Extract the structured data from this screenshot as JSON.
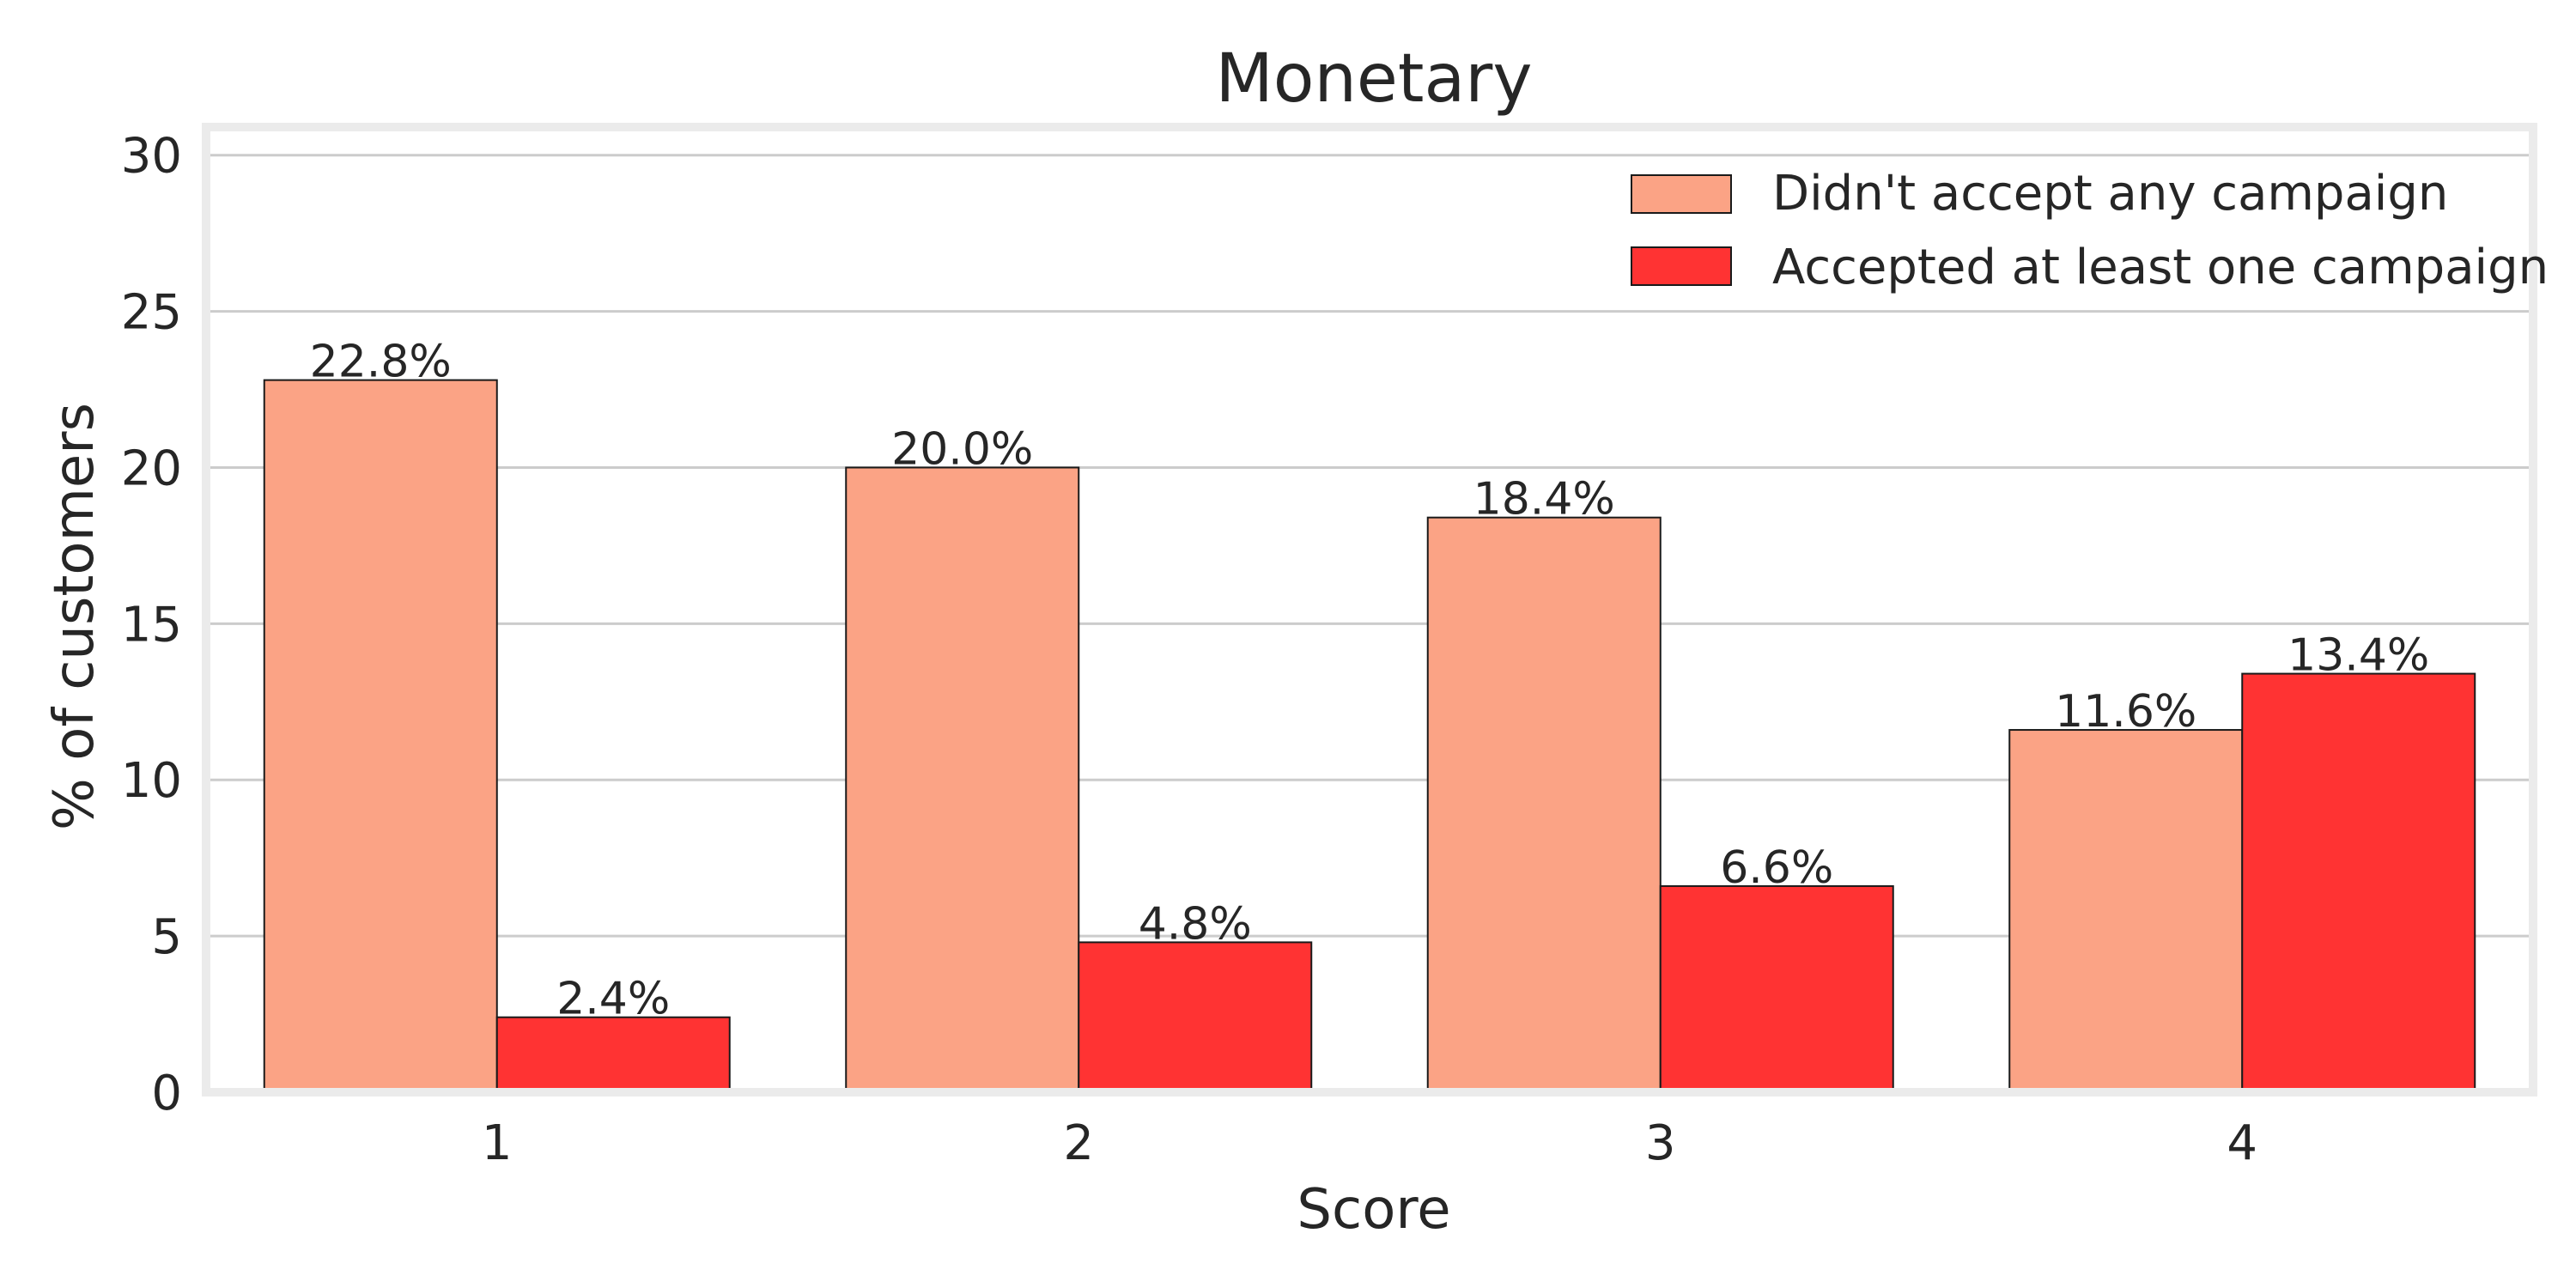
{
  "chart_data": {
    "type": "bar",
    "title": "Monetary",
    "xlabel": "Score",
    "ylabel": "% of customers",
    "categories": [
      "1",
      "2",
      "3",
      "4"
    ],
    "series": [
      {
        "name": "Didn't accept any campaign",
        "values": [
          22.8,
          20.0,
          18.4,
          11.6
        ],
        "labels": [
          "22.8%",
          "20.0%",
          "18.4%",
          "11.6%"
        ],
        "color": "#fba385"
      },
      {
        "name": "Accepted at least one campaign",
        "values": [
          2.4,
          4.8,
          6.6,
          13.4
        ],
        "labels": [
          "2.4%",
          "4.8%",
          "6.6%",
          "13.4%"
        ],
        "color": "#ff3333"
      }
    ],
    "ylim": [
      0,
      30.9
    ],
    "yticks": [
      0,
      5,
      10,
      15,
      20,
      25,
      30
    ],
    "ytick_labels": [
      "0",
      "5",
      "10",
      "15",
      "20",
      "25",
      "30"
    ],
    "grid": "horizontal",
    "legend_position": "top-right",
    "colors": {
      "grid": "#cccccc",
      "frame": "#ebebeb",
      "bar_edge": "#1a1a1a",
      "text": "#262626"
    }
  }
}
